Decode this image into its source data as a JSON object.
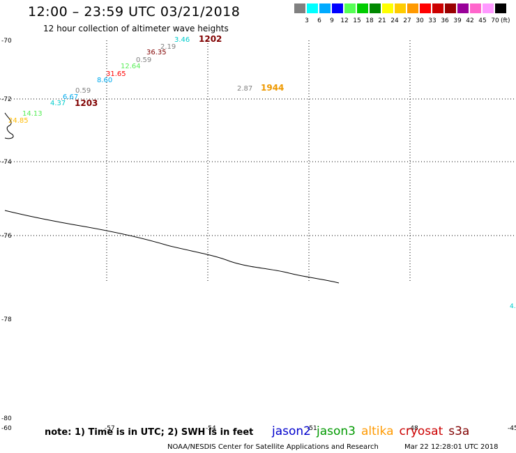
{
  "header": {
    "title": "12:00 – 23:59 UTC 03/21/2018",
    "subtitle": "12 hour collection of altimeter wave heights"
  },
  "legend": {
    "unit": "(ft)",
    "colors": [
      "#808080",
      "#00ffff",
      "#00aaff",
      "#0000ff",
      "#55ff55",
      "#00cc00",
      "#008800",
      "#ffff00",
      "#ffcc00",
      "#ff9900",
      "#ff0000",
      "#cc0000",
      "#990000",
      "#990099",
      "#ff66cc",
      "#ff99ff",
      "#000000"
    ],
    "labels": [
      "3",
      "6",
      "9",
      "12",
      "15",
      "18",
      "21",
      "24",
      "27",
      "30",
      "33",
      "36",
      "39",
      "42",
      "45",
      "70"
    ]
  },
  "axis": {
    "y_ticks": [
      "-70",
      "-72",
      "-74",
      "-76",
      "-78",
      "-80"
    ],
    "x_ticks": [
      "-60",
      "-57",
      "-54",
      "-51",
      "-48",
      "-45"
    ],
    "edge_value": "4."
  },
  "tracks": [
    {
      "id": "1202",
      "time_label": "1202",
      "time_color": "#800000",
      "points": [
        {
          "v": "3.46",
          "c": "#00cccc"
        },
        {
          "v": "2.19",
          "c": "#808080"
        },
        {
          "v": "36.35",
          "c": "#800000"
        },
        {
          "v": "0.59",
          "c": "#808080"
        },
        {
          "v": "12.64",
          "c": "#55ee55"
        },
        {
          "v": "31.65",
          "c": "#ff0000"
        },
        {
          "v": "8.60",
          "c": "#00aaee"
        },
        {
          "v": "0.59",
          "c": "#808080"
        }
      ]
    },
    {
      "id": "1203",
      "time_label": "1203",
      "time_color": "#800000",
      "points": [
        {
          "v": "6.67",
          "c": "#00aaee"
        },
        {
          "v": "4.37",
          "c": "#00cccc"
        },
        {
          "v": "14.13",
          "c": "#55ee55"
        },
        {
          "v": "24.85",
          "c": "#ffbb00"
        }
      ]
    },
    {
      "id": "1944",
      "time_label": "1944",
      "time_color": "#ee9900",
      "points": [
        {
          "v": "2.87",
          "c": "#808080"
        }
      ]
    }
  ],
  "footer": {
    "note": "note:  1) Time is in UTC;  2) SWH is in feet",
    "satellites": [
      {
        "name": "jason2",
        "color": "#0000cc"
      },
      {
        "name": "jason3",
        "color": "#009900"
      },
      {
        "name": "altika",
        "color": "#ff9900"
      },
      {
        "name": "cryosat",
        "color": "#cc0000"
      },
      {
        "name": "s3a",
        "color": "#800000"
      }
    ],
    "credit": "NOAA/NESDIS Center for Satellite Applications and Research",
    "timestamp": "Mar 22 12:28:01 UTC 2018"
  },
  "chart_data": {
    "type": "scatter",
    "title": "12:00 – 23:59 UTC 03/21/2018",
    "subtitle": "12 hour collection of altimeter wave heights",
    "xlabel": "",
    "ylabel": "",
    "x_ticks": [
      -60,
      -57,
      -54,
      -51,
      -48,
      -45
    ],
    "y_ticks": [
      -70,
      -72,
      -74,
      -76,
      -78,
      -80
    ],
    "grid": true,
    "series": [
      {
        "name": "1202",
        "values": [
          3.46,
          2.19,
          36.35,
          0.59,
          12.64,
          31.65,
          8.6,
          0.59
        ]
      },
      {
        "name": "1203",
        "values": [
          6.67,
          4.37,
          14.13,
          24.85
        ]
      },
      {
        "name": "1944",
        "values": [
          2.87
        ]
      }
    ]
  }
}
